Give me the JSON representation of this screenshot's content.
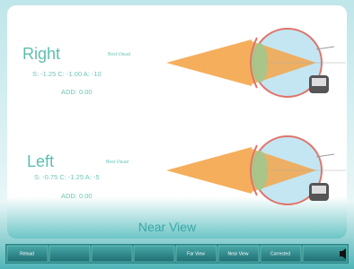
{
  "panels": [
    {
      "label": "Right",
      "mode": "Best Visual",
      "prescription": "S: -1.25 C: -1.00 A: -10",
      "add": "ADD: 0.00"
    },
    {
      "label": "Left",
      "mode": "Best Visual",
      "prescription": "S: -0.75 C: -1.25 A: -5",
      "add": "ADD: 0.00"
    }
  ],
  "view_title": "Near View",
  "buttons": {
    "reload": "Reload",
    "far": "Far View",
    "near": "Near View",
    "corrected": "Corrected"
  }
}
